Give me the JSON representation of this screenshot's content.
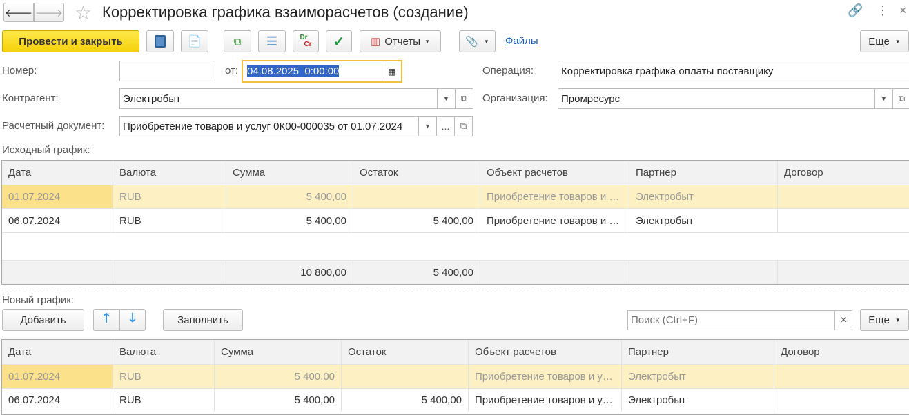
{
  "window": {
    "title": "Корректировка графика взаиморасчетов (создание)"
  },
  "toolbar": {
    "post_close": "Провести и закрыть",
    "reports": "Отчеты",
    "files": "Файлы",
    "more": "Еще",
    "drcr_dr": "Dr",
    "drcr_cr": "Cr"
  },
  "form": {
    "number_label": "Номер:",
    "number_value": "",
    "date_label": "от:",
    "date_value": "04.08.2025  0:00:00",
    "operation_label": "Операция:",
    "operation_value": "Корректировка графика оплаты поставщику",
    "counterparty_label": "Контрагент:",
    "counterparty_value": "Электробыт",
    "organization_label": "Организация:",
    "organization_value": "Промресурс",
    "settlement_doc_label": "Расчетный документ:",
    "settlement_doc_value": "Приобретение товаров и услуг 0К00-000035 от 01.07.2024",
    "ellipsis": "..."
  },
  "original_schedule": {
    "label": "Исходный график:",
    "columns": [
      "Дата",
      "Валюта",
      "Сумма",
      "Остаток",
      "Объект расчетов",
      "Партнер",
      "Договор"
    ],
    "rows": [
      [
        "01.07.2024",
        "RUB",
        "5 400,00",
        "",
        "Приобретение товаров и услуг",
        "Электробыт",
        ""
      ],
      [
        "06.07.2024",
        "RUB",
        "5 400,00",
        "5 400,00",
        "Приобретение товаров и услуг",
        "Электробыт",
        ""
      ]
    ],
    "totals": [
      "",
      "",
      "10 800,00",
      "5 400,00",
      "",
      "",
      ""
    ]
  },
  "new_schedule": {
    "label": "Новый график:",
    "add": "Добавить",
    "fill": "Заполнить",
    "search_placeholder": "Поиск (Ctrl+F)",
    "more": "Еще",
    "columns": [
      "Дата",
      "Валюта",
      "Сумма",
      "Остаток",
      "Объект расчетов",
      "Партнер",
      "Договор"
    ],
    "rows": [
      [
        "01.07.2024",
        "RUB",
        "5 400,00",
        "",
        "Приобретение товаров и услуг",
        "Электробыт",
        ""
      ],
      [
        "06.07.2024",
        "RUB",
        "5 400,00",
        "5 400,00",
        "Приобретение товаров и услуг",
        "Электробыт",
        ""
      ]
    ]
  }
}
